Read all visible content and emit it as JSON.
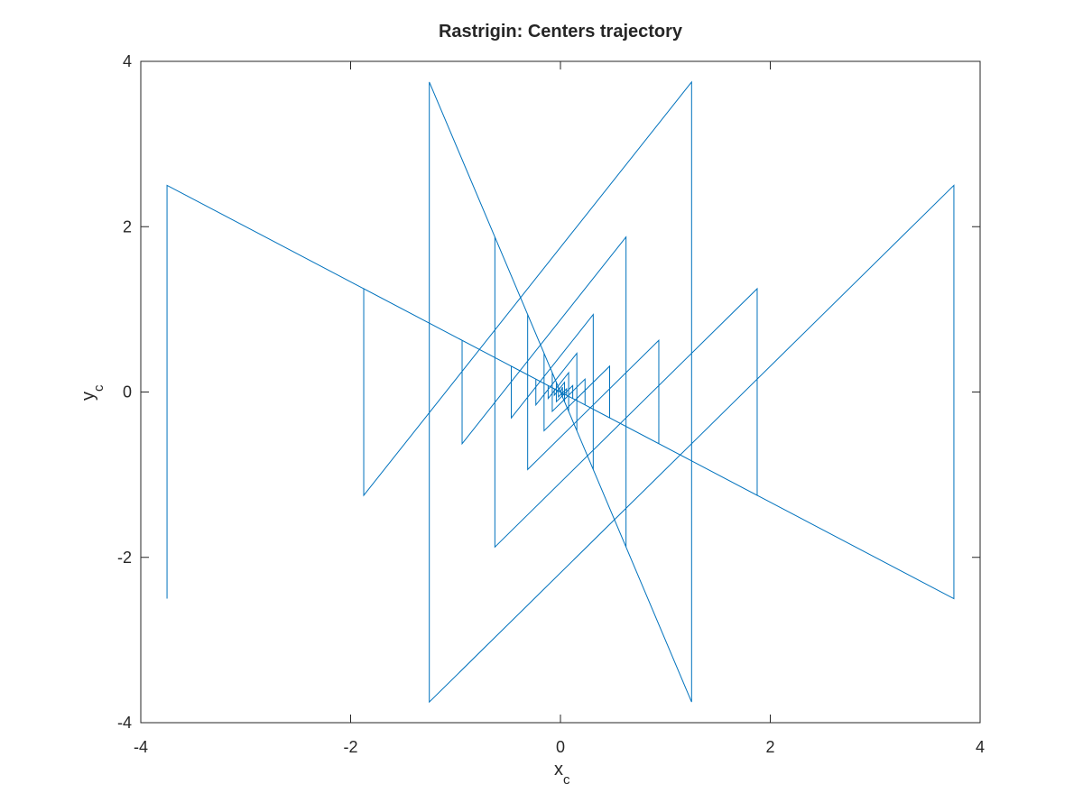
{
  "chart_data": {
    "type": "line",
    "title": "Rastrigin: Centers trajectory",
    "xlabel": {
      "main": "x",
      "sub": "c"
    },
    "ylabel": {
      "main": "y",
      "sub": "c"
    },
    "xlim": [
      -4,
      4
    ],
    "ylim": [
      -4,
      4
    ],
    "xticks": [
      -4,
      -2,
      0,
      2,
      4
    ],
    "yticks": [
      -4,
      -2,
      0,
      2,
      4
    ],
    "xtick_labels": [
      "-4",
      "-2",
      "0",
      "2",
      "4"
    ],
    "ytick_labels": [
      "-4",
      "-2",
      "0",
      "2",
      "4"
    ],
    "grid": false,
    "line_color": "#0072bd",
    "series": [
      {
        "x": [
          -3.75,
          -3.75,
          3.75,
          3.75,
          -1.25,
          -1.25,
          1.25,
          1.25,
          -1.875,
          -1.875,
          1.875,
          1.875,
          -0.625,
          -0.625,
          0.625,
          0.625,
          -0.9375,
          -0.9375,
          0.9375,
          0.9375,
          -0.3125,
          -0.3125,
          0.3125,
          0.3125,
          -0.46875,
          -0.46875,
          0.46875,
          0.46875,
          -0.15625,
          -0.15625,
          0.15625,
          0.15625,
          -0.234375,
          -0.234375,
          0.234375,
          0.234375,
          -0.078125,
          -0.078125,
          0.078125,
          0.078125,
          -0.1171875,
          -0.1171875,
          0.1171875,
          0.1171875,
          -0.0390625,
          -0.0390625,
          0.0390625,
          0.0390625,
          -0.05859375,
          -0.05859375,
          0.05859375,
          0.05859375,
          -0.01953125,
          -0.01953125,
          0.01953125,
          0.01953125,
          0
        ],
        "y": [
          -2.5,
          2.5,
          -2.5,
          2.5,
          -3.75,
          3.75,
          -3.75,
          3.75,
          -1.25,
          1.25,
          -1.25,
          1.25,
          -1.875,
          1.875,
          -1.875,
          1.875,
          -0.625,
          0.625,
          -0.625,
          0.625,
          -0.9375,
          0.9375,
          -0.9375,
          0.9375,
          -0.3125,
          0.3125,
          -0.3125,
          0.3125,
          -0.46875,
          0.46875,
          -0.46875,
          0.46875,
          -0.15625,
          0.15625,
          -0.15625,
          0.15625,
          -0.234375,
          0.234375,
          -0.234375,
          0.234375,
          -0.078125,
          0.078125,
          -0.078125,
          0.078125,
          -0.1171875,
          0.1171875,
          -0.1171875,
          0.1171875,
          -0.0390625,
          0.0390625,
          -0.0390625,
          0.0390625,
          -0.05859375,
          0.05859375,
          -0.05859375,
          0.05859375,
          0
        ]
      }
    ]
  }
}
